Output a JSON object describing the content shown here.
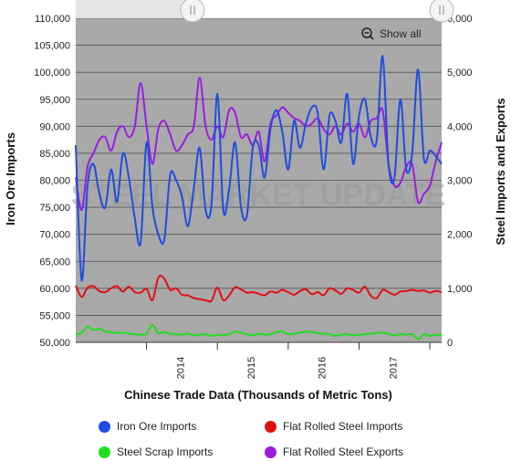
{
  "toolbar": {
    "show_all_label": "Show all"
  },
  "watermark": "STEEL MARKET UPDATE",
  "chart_data": {
    "type": "line",
    "title": "",
    "xlabel": "Chinese Trade Data (Thousands of Metric Tons)",
    "ylabel_left": "Iron Ore Imports",
    "ylabel_right": "Steel Imports and Exports",
    "ylim_left": [
      50000,
      110000
    ],
    "ylim_right": [
      0,
      6000
    ],
    "yticks_left": [
      "110,000",
      "105,000",
      "100,000",
      "95,000",
      "90,000",
      "85,000",
      "80,000",
      "75,000",
      "70,000",
      "65,000",
      "60,000",
      "55,000",
      "50,000"
    ],
    "yticks_right": [
      "6,000",
      "5,000",
      "4,000",
      "3,000",
      "2,000",
      "1,000",
      "0"
    ],
    "xticks": [
      "2014",
      "2015",
      "2016",
      "2017"
    ],
    "grid": true,
    "legend_position": "bottom",
    "x": [
      "2013-01",
      "2013-02",
      "2013-03",
      "2013-04",
      "2013-05",
      "2013-06",
      "2013-07",
      "2013-08",
      "2013-09",
      "2013-10",
      "2013-11",
      "2013-12",
      "2014-01",
      "2014-02",
      "2014-03",
      "2014-04",
      "2014-05",
      "2014-06",
      "2014-07",
      "2014-08",
      "2014-09",
      "2014-10",
      "2014-11",
      "2014-12",
      "2015-01",
      "2015-02",
      "2015-03",
      "2015-04",
      "2015-05",
      "2015-06",
      "2015-07",
      "2015-08",
      "2015-09",
      "2015-10",
      "2015-11",
      "2015-12",
      "2016-01",
      "2016-02",
      "2016-03",
      "2016-04",
      "2016-05",
      "2016-06",
      "2016-07",
      "2016-08",
      "2016-09",
      "2016-10",
      "2016-11",
      "2016-12",
      "2017-01",
      "2017-02",
      "2017-03",
      "2017-04",
      "2017-05",
      "2017-06",
      "2017-07",
      "2017-08",
      "2017-09",
      "2017-10",
      "2017-11",
      "2017-12",
      "2018-01",
      "2018-02",
      "2018-03"
    ],
    "series": [
      {
        "name": "Iron Ore Imports",
        "axis": "left",
        "color": "#1f4de0",
        "values": [
          86500,
          61500,
          79000,
          83000,
          77500,
          75000,
          82000,
          76000,
          85000,
          80500,
          73000,
          68500,
          87000,
          75000,
          70000,
          69000,
          81000,
          80000,
          77000,
          71500,
          78500,
          86000,
          74500,
          75500,
          96000,
          74500,
          78500,
          87000,
          75000,
          73500,
          86000,
          86500,
          80500,
          89500,
          93000,
          89000,
          82000,
          91000,
          86000,
          90500,
          93500,
          92500,
          82000,
          92000,
          91000,
          87000,
          96000,
          83000,
          92000,
          95000,
          88000,
          87500,
          103000,
          83000,
          80500,
          95000,
          82000,
          85000,
          100500,
          84000,
          85500,
          84500,
          83000
        ]
      },
      {
        "name": "Flat Rolled Steel Imports",
        "axis": "right",
        "color": "#e01010",
        "values": [
          1050,
          840,
          1010,
          1040,
          950,
          930,
          1000,
          1040,
          940,
          1030,
          930,
          920,
          990,
          780,
          1200,
          1180,
          970,
          1000,
          880,
          870,
          820,
          800,
          780,
          770,
          1010,
          780,
          870,
          1020,
          980,
          920,
          930,
          900,
          870,
          940,
          920,
          970,
          930,
          880,
          950,
          980,
          890,
          930,
          870,
          1000,
          960,
          900,
          1000,
          970,
          920,
          1030,
          860,
          820,
          970,
          930,
          880,
          940,
          950,
          970,
          950,
          960,
          920,
          950,
          930
        ]
      },
      {
        "name": "Steel Scrap Imports",
        "axis": "right",
        "color": "#22dd22",
        "values": [
          140,
          180,
          290,
          230,
          250,
          200,
          190,
          170,
          180,
          160,
          150,
          140,
          160,
          320,
          170,
          190,
          160,
          150,
          140,
          160,
          130,
          140,
          150,
          120,
          140,
          130,
          150,
          200,
          180,
          150,
          130,
          160,
          140,
          150,
          190,
          200,
          150,
          160,
          180,
          200,
          190,
          170,
          160,
          150,
          120,
          140,
          150,
          130,
          140,
          150,
          160,
          170,
          180,
          160,
          130,
          150,
          140,
          150,
          60,
          150,
          120,
          140,
          130
        ]
      },
      {
        "name": "Flat Rolled Steel Exports",
        "axis": "right",
        "color": "#9b1ce0",
        "values": [
          3050,
          2450,
          3250,
          3500,
          3750,
          3800,
          3550,
          3900,
          4000,
          3800,
          4000,
          4800,
          4000,
          3300,
          3950,
          4100,
          3850,
          3550,
          3650,
          3850,
          4000,
          4900,
          4000,
          3750,
          4000,
          3800,
          4300,
          4250,
          3800,
          3850,
          3650,
          3900,
          3350,
          4050,
          4200,
          4350,
          4250,
          4150,
          4100,
          4000,
          4050,
          4150,
          3950,
          3850,
          4000,
          3850,
          4050,
          3900,
          4050,
          3800,
          4100,
          4150,
          4300,
          3300,
          2900,
          2950,
          3250,
          3300,
          2600,
          2750,
          2900,
          3350,
          3700
        ]
      }
    ]
  }
}
